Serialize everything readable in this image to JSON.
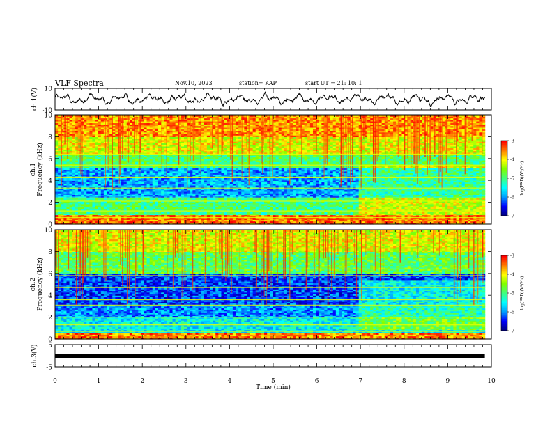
{
  "header": {
    "title": "VLF Spectra",
    "date": "Nov.10, 2023",
    "station": "station= KAP",
    "start_ut": "start  UT  =   21: 10: 1"
  },
  "chart_data": [
    {
      "type": "line",
      "panel": "waveform",
      "ylabel": "ch.1(V)",
      "ylim": [
        -10,
        10
      ],
      "yticks": [
        "10",
        "-10"
      ],
      "xlim": [
        0,
        10
      ],
      "data_extent_min": [
        0,
        9.85
      ],
      "series": [
        {
          "description_level": "noisy waveform roughly between -6 and 6 V"
        }
      ]
    },
    {
      "type": "heatmap",
      "panel": "spectrogram",
      "ylabel": "ch.1\nFrequency (kHz)",
      "ylim": [
        0,
        10
      ],
      "yticks": [
        "0",
        "2",
        "4",
        "6",
        "8",
        "10"
      ],
      "xlim": [
        0,
        10
      ],
      "data_extent_min": [
        0,
        9.85
      ],
      "colorbar": {
        "label": "log(PSD)(V²/Hz)",
        "range": [
          -7,
          -3
        ],
        "ticks": [
          "-3",
          "-4",
          "-5",
          "-6",
          "-7"
        ]
      },
      "bands_khz": [
        {
          "from": 0,
          "to": 0.8,
          "level": -3.4
        },
        {
          "from": 0.8,
          "to": 2.5,
          "level": -5.0
        },
        {
          "from": 2.5,
          "to": 5.2,
          "level": -5.9
        },
        {
          "from": 5.2,
          "to": 6.5,
          "level": -4.9
        },
        {
          "from": 6.5,
          "to": 8.0,
          "level": -4.1
        },
        {
          "from": 8.0,
          "to": 10,
          "level": -3.6
        }
      ],
      "change_at_min": 6.95,
      "lines_khz": [
        0.3,
        0.6,
        1.2,
        2.1,
        2.4,
        3.3,
        4.3,
        5.4,
        6.4
      ]
    },
    {
      "type": "heatmap",
      "panel": "spectrogram",
      "ylabel": "ch.2\nFrequency (kHz)",
      "ylim": [
        0,
        10
      ],
      "yticks": [
        "0",
        "2",
        "4",
        "6",
        "8",
        "10"
      ],
      "xlim": [
        0,
        10
      ],
      "data_extent_min": [
        0,
        9.85
      ],
      "colorbar": {
        "label": "log(PSD)(V²/Hz)",
        "range": [
          -7,
          -3
        ],
        "ticks": [
          "-3",
          "-4",
          "-5",
          "-6",
          "-7"
        ]
      },
      "bands_khz": [
        {
          "from": 0,
          "to": 0.6,
          "level": -3.5
        },
        {
          "from": 0.6,
          "to": 2.0,
          "level": -5.5
        },
        {
          "from": 2.0,
          "to": 3.2,
          "level": -6.0
        },
        {
          "from": 3.2,
          "to": 6.0,
          "level": -6.3
        },
        {
          "from": 6.0,
          "to": 8.0,
          "level": -4.8
        },
        {
          "from": 8.0,
          "to": 10,
          "level": -4.1
        }
      ],
      "change_at_min": 6.95,
      "lines_khz": [
        0.3,
        0.7,
        1.3,
        2.0,
        3.1,
        3.6,
        4.7,
        5.8,
        6.4
      ]
    },
    {
      "type": "line",
      "panel": "waveform",
      "ylabel": "ch.3(V)",
      "ylim": [
        -5,
        5
      ],
      "yticks": [
        "5",
        "-5"
      ],
      "xlim": [
        0,
        10
      ],
      "data_extent_min": [
        0,
        9.85
      ],
      "series": [
        {
          "constant_level": 0
        }
      ]
    }
  ],
  "xaxis": {
    "label": "Time  (min)",
    "ticks": [
      "0",
      "1",
      "2",
      "3",
      "4",
      "5",
      "6",
      "7",
      "8",
      "9",
      "10"
    ],
    "range": [
      0,
      10
    ]
  },
  "colors": {
    "waveform": "#000000",
    "colormap": [
      "#000080",
      "#0000ff",
      "#00a0ff",
      "#00ffff",
      "#40ff80",
      "#80ff00",
      "#ffff00",
      "#ff8000",
      "#ff0000"
    ]
  }
}
